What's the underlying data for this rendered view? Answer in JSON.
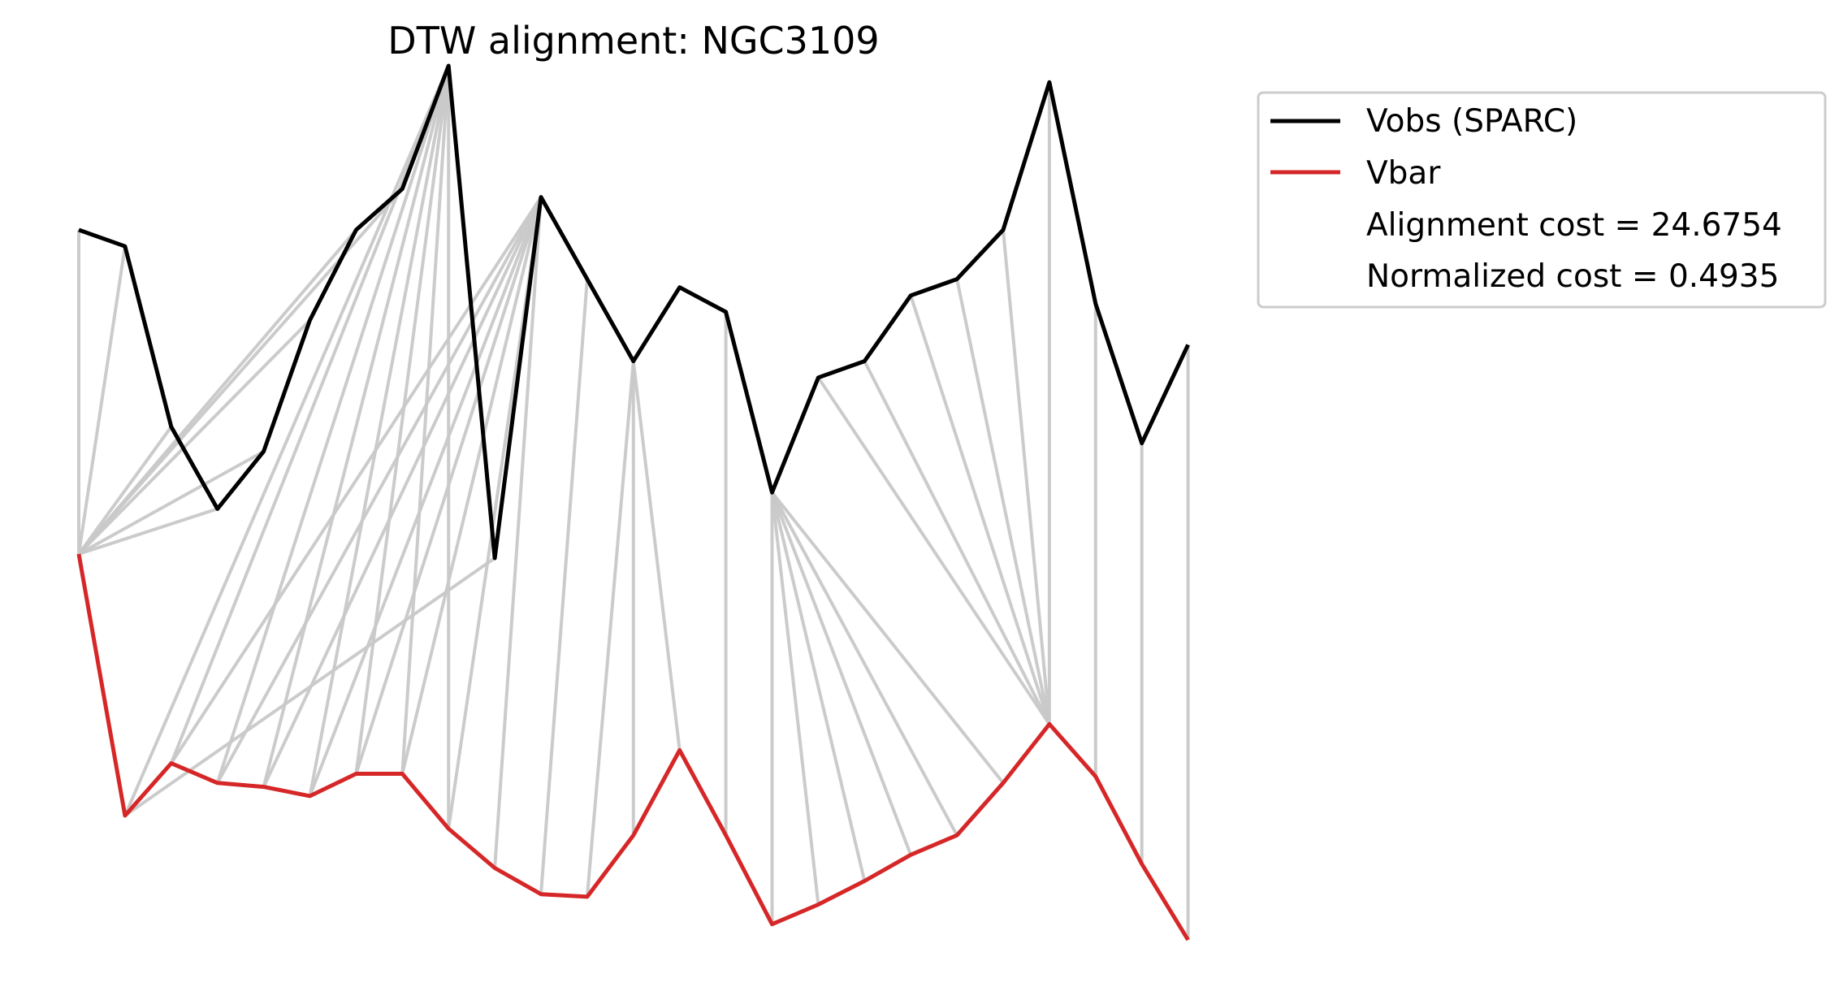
{
  "chart_data": {
    "type": "line",
    "title": "DTW alignment: NGC3109",
    "xlabel": "",
    "ylabel": "",
    "axes_visible": false,
    "grid": false,
    "legend_position": "outside-top-right",
    "colors": {
      "vobs": "#000000",
      "vbar": "#d62728",
      "alignment": "#c8c8c8",
      "legend_frame": "#cccccc"
    },
    "series": [
      {
        "name": "Vobs (SPARC)",
        "values": [
          3.5,
          3.4,
          2.3,
          1.8,
          2.15,
          2.95,
          3.5,
          3.75,
          4.5,
          1.5,
          3.7,
          3.2,
          2.7,
          3.15,
          3.0,
          1.9,
          2.6,
          2.7,
          3.1,
          3.2,
          3.5,
          4.4,
          3.05,
          2.2,
          2.8
        ]
      },
      {
        "name": "Vbar",
        "values": [
          2.95,
          0.95,
          1.35,
          1.2,
          1.17,
          1.1,
          1.27,
          1.27,
          0.85,
          0.55,
          0.35,
          0.33,
          0.8,
          1.45,
          0.8,
          0.12,
          0.27,
          0.45,
          0.65,
          0.8,
          1.2,
          1.65,
          1.25,
          0.58,
          0.0
        ]
      }
    ],
    "alignment_path": [
      [
        0,
        0
      ],
      [
        1,
        0
      ],
      [
        2,
        0
      ],
      [
        3,
        0
      ],
      [
        4,
        0
      ],
      [
        5,
        0
      ],
      [
        6,
        0
      ],
      [
        7,
        0
      ],
      [
        8,
        1
      ],
      [
        8,
        2
      ],
      [
        8,
        3
      ],
      [
        8,
        4
      ],
      [
        8,
        5
      ],
      [
        8,
        6
      ],
      [
        8,
        7
      ],
      [
        8,
        8
      ],
      [
        9,
        1
      ],
      [
        10,
        2
      ],
      [
        10,
        3
      ],
      [
        10,
        4
      ],
      [
        10,
        5
      ],
      [
        10,
        6
      ],
      [
        10,
        7
      ],
      [
        10,
        8
      ],
      [
        10,
        9
      ],
      [
        11,
        10
      ],
      [
        12,
        11
      ],
      [
        12,
        12
      ],
      [
        12,
        13
      ],
      [
        14,
        14
      ],
      [
        15,
        15
      ],
      [
        15,
        16
      ],
      [
        15,
        17
      ],
      [
        15,
        18
      ],
      [
        15,
        19
      ],
      [
        15,
        20
      ],
      [
        16,
        21
      ],
      [
        17,
        21
      ],
      [
        18,
        21
      ],
      [
        19,
        21
      ],
      [
        20,
        21
      ],
      [
        21,
        21
      ],
      [
        22,
        22
      ],
      [
        23,
        23
      ],
      [
        24,
        24
      ]
    ],
    "legend_entries": [
      {
        "label": "Vobs (SPARC)",
        "color": "#000000",
        "marker": "line"
      },
      {
        "label": "Vbar",
        "color": "#d62728",
        "marker": "line"
      },
      {
        "label": "Alignment cost = 24.6754",
        "color": "",
        "marker": "none"
      },
      {
        "label": "Normalized cost = 0.4935",
        "color": "",
        "marker": "none"
      }
    ]
  }
}
